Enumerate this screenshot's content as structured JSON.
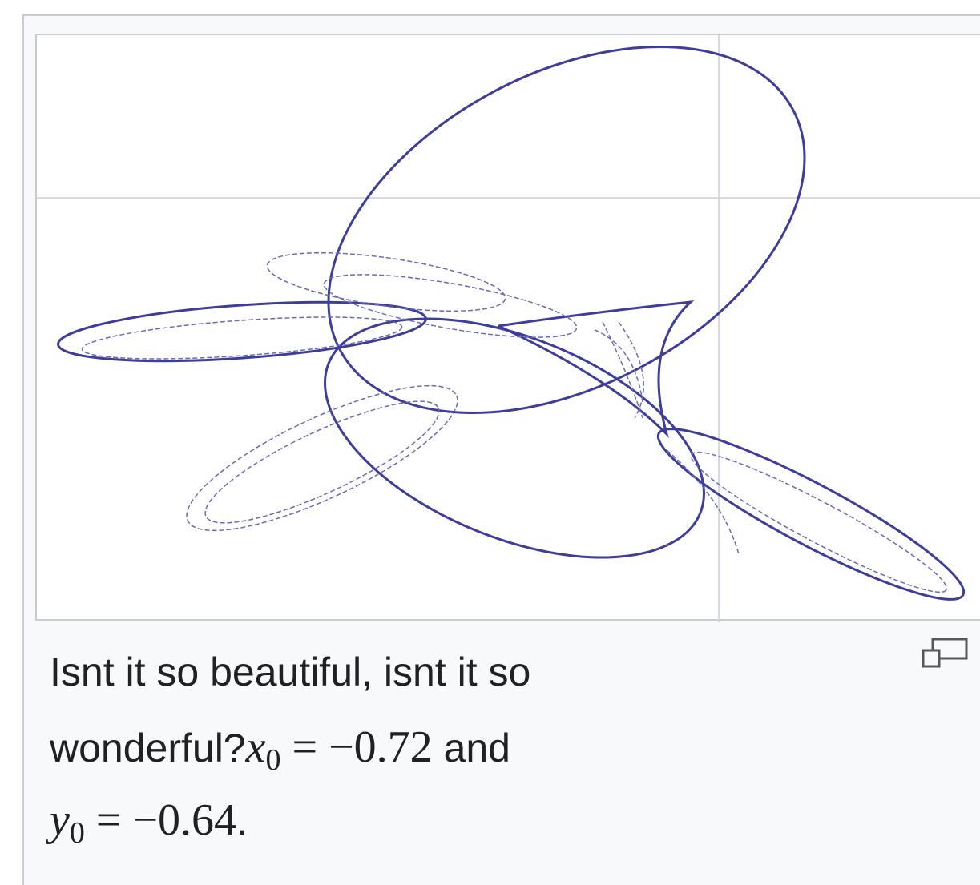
{
  "caption": {
    "line_1": "Isnt it so beautiful, isnt it so",
    "line_2_text": "wonderful?",
    "x_var": "x",
    "x_sub": "0",
    "x_rel": "=",
    "x_value": "−0.72",
    "joiner": "and",
    "y_var": "y",
    "y_sub": "0",
    "y_rel": "=",
    "y_value": "−0.64",
    "end": "."
  }
}
